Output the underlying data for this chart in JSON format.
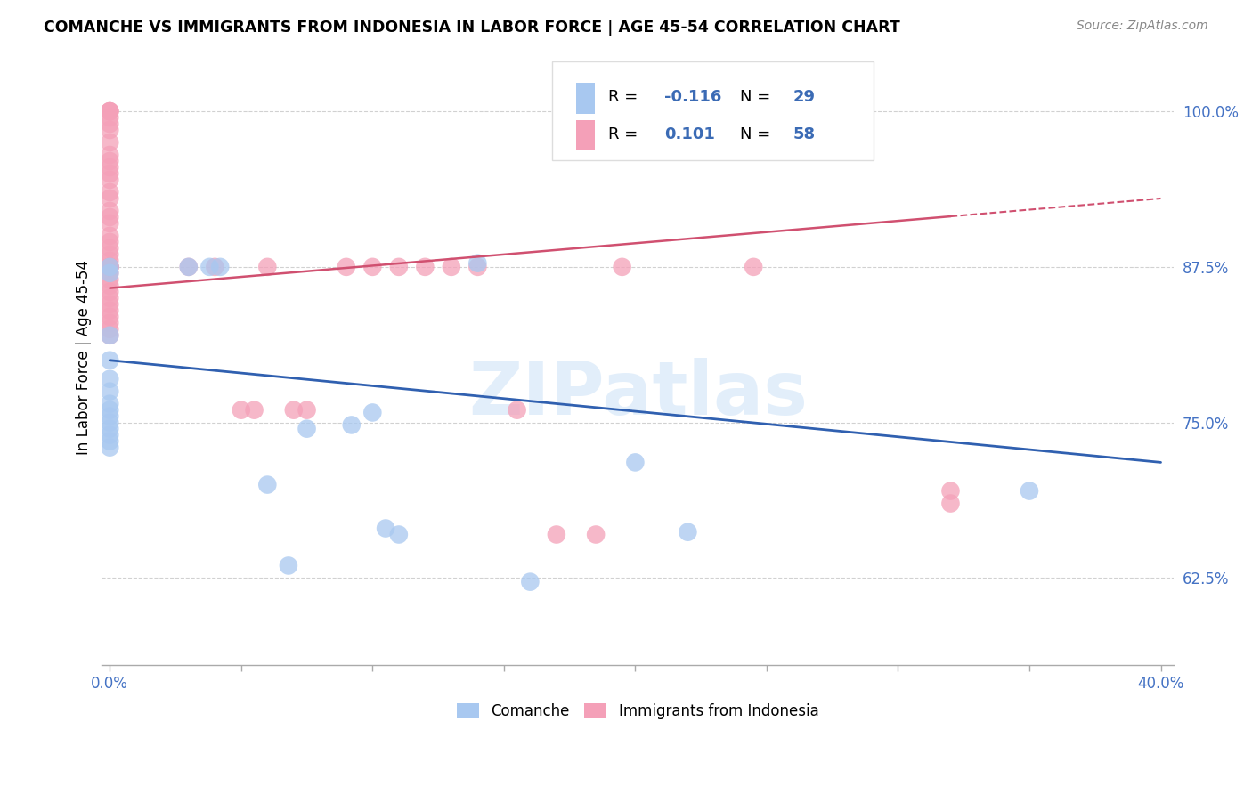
{
  "title": "COMANCHE VS IMMIGRANTS FROM INDONESIA IN LABOR FORCE | AGE 45-54 CORRELATION CHART",
  "source": "Source: ZipAtlas.com",
  "ylabel": "In Labor Force | Age 45-54",
  "xlim": [
    -0.003,
    0.405
  ],
  "ylim": [
    0.555,
    1.05
  ],
  "yticks": [
    0.625,
    0.75,
    0.875,
    1.0
  ],
  "comanche_color": "#a8c8f0",
  "indonesia_color": "#f4a0b8",
  "comanche_line_color": "#3060b0",
  "indonesia_line_color": "#d05070",
  "comanche_R": -0.116,
  "comanche_N": 29,
  "indonesia_R": 0.101,
  "indonesia_N": 58,
  "watermark": "ZIPatlas",
  "blue_line_x0": 0.0,
  "blue_line_y0": 0.8,
  "blue_line_x1": 0.4,
  "blue_line_y1": 0.718,
  "pink_line_x0": 0.0,
  "pink_line_y0": 0.858,
  "pink_line_x1": 0.4,
  "pink_line_y1": 0.93,
  "comanche_x": [
    0.0,
    0.0,
    0.0,
    0.0,
    0.0,
    0.0,
    0.0,
    0.0,
    0.0,
    0.0,
    0.0,
    0.0,
    0.0,
    0.0,
    0.03,
    0.038,
    0.042,
    0.06,
    0.068,
    0.075,
    0.092,
    0.1,
    0.105,
    0.11,
    0.14,
    0.16,
    0.2,
    0.22,
    0.35
  ],
  "comanche_y": [
    0.875,
    0.87,
    0.82,
    0.8,
    0.785,
    0.775,
    0.765,
    0.76,
    0.755,
    0.75,
    0.745,
    0.74,
    0.735,
    0.73,
    0.875,
    0.875,
    0.875,
    0.7,
    0.635,
    0.745,
    0.748,
    0.758,
    0.665,
    0.66,
    0.878,
    0.622,
    0.718,
    0.662,
    0.695
  ],
  "indonesia_x": [
    0.0,
    0.0,
    0.0,
    0.0,
    0.0,
    0.0,
    0.0,
    0.0,
    0.0,
    0.0,
    0.0,
    0.0,
    0.0,
    0.0,
    0.0,
    0.0,
    0.0,
    0.0,
    0.0,
    0.0,
    0.0,
    0.0,
    0.0,
    0.0,
    0.0,
    0.0,
    0.0,
    0.0,
    0.0,
    0.0,
    0.0,
    0.0,
    0.0,
    0.0,
    0.0,
    0.0,
    0.0,
    0.0,
    0.03,
    0.04,
    0.05,
    0.055,
    0.06,
    0.07,
    0.075,
    0.09,
    0.1,
    0.11,
    0.12,
    0.13,
    0.14,
    0.155,
    0.17,
    0.185,
    0.195,
    0.245,
    0.32,
    0.32
  ],
  "indonesia_y": [
    1.0,
    1.0,
    1.0,
    0.995,
    0.99,
    0.985,
    0.975,
    0.965,
    0.96,
    0.955,
    0.95,
    0.945,
    0.935,
    0.93,
    0.92,
    0.915,
    0.91,
    0.9,
    0.895,
    0.89,
    0.885,
    0.88,
    0.875,
    0.875,
    0.87,
    0.865,
    0.86,
    0.855,
    0.85,
    0.845,
    0.84,
    0.835,
    0.83,
    0.825,
    0.82,
    0.875,
    0.875,
    0.875,
    0.875,
    0.875,
    0.76,
    0.76,
    0.875,
    0.76,
    0.76,
    0.875,
    0.875,
    0.875,
    0.875,
    0.875,
    0.875,
    0.76,
    0.66,
    0.66,
    0.875,
    0.875,
    0.695,
    0.685
  ]
}
